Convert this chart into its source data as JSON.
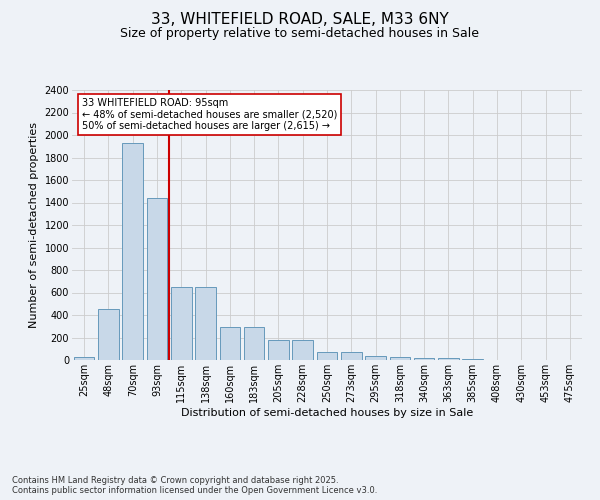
{
  "title": "33, WHITEFIELD ROAD, SALE, M33 6NY",
  "subtitle": "Size of property relative to semi-detached houses in Sale",
  "xlabel": "Distribution of semi-detached houses by size in Sale",
  "ylabel": "Number of semi-detached properties",
  "footer_line1": "Contains HM Land Registry data © Crown copyright and database right 2025.",
  "footer_line2": "Contains public sector information licensed under the Open Government Licence v3.0.",
  "bar_categories": [
    "25sqm",
    "48sqm",
    "70sqm",
    "93sqm",
    "115sqm",
    "138sqm",
    "160sqm",
    "183sqm",
    "205sqm",
    "228sqm",
    "250sqm",
    "273sqm",
    "295sqm",
    "318sqm",
    "340sqm",
    "363sqm",
    "385sqm",
    "408sqm",
    "430sqm",
    "453sqm",
    "475sqm"
  ],
  "bar_values": [
    30,
    450,
    1930,
    1440,
    650,
    650,
    290,
    290,
    180,
    180,
    75,
    75,
    40,
    30,
    18,
    18,
    5,
    2,
    0,
    0,
    0
  ],
  "bar_color": "#c8d8e8",
  "bar_edge_color": "#6699bb",
  "grid_color": "#cccccc",
  "background_color": "#eef2f7",
  "vline_x": 3.5,
  "vline_color": "#cc0000",
  "annotation_text": "33 WHITEFIELD ROAD: 95sqm\n← 48% of semi-detached houses are smaller (2,520)\n50% of semi-detached houses are larger (2,615) →",
  "annotation_box_color": "#ffffff",
  "annotation_box_edge": "#cc0000",
  "ylim": [
    0,
    2400
  ],
  "yticks": [
    0,
    200,
    400,
    600,
    800,
    1000,
    1200,
    1400,
    1600,
    1800,
    2000,
    2200,
    2400
  ],
  "title_fontsize": 11,
  "subtitle_fontsize": 9,
  "axis_label_fontsize": 8,
  "tick_fontsize": 7,
  "annotation_fontsize": 7,
  "footer_fontsize": 6
}
